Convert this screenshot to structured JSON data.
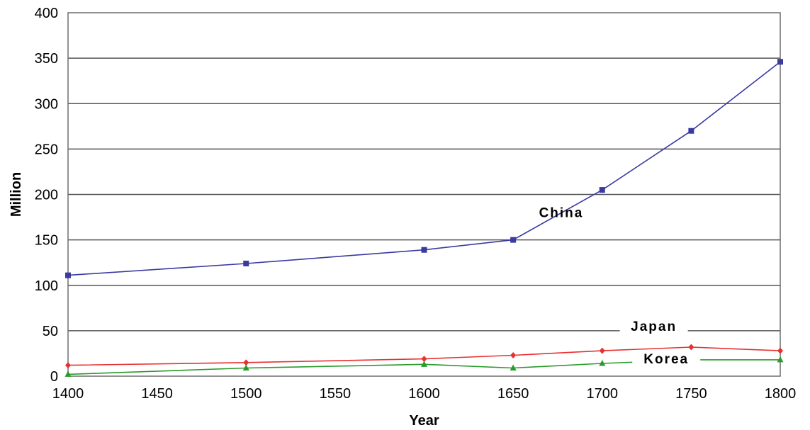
{
  "chart_data": {
    "type": "line",
    "xlabel": "Year",
    "ylabel": "Million",
    "xlim": [
      1400,
      1800
    ],
    "ylim": [
      0,
      400
    ],
    "xticks": [
      "1400",
      "1450",
      "1500",
      "1550",
      "1600",
      "1650",
      "1700",
      "1750",
      "1800"
    ],
    "yticks": [
      "0",
      "50",
      "100",
      "150",
      "200",
      "250",
      "300",
      "350",
      "400"
    ],
    "grid": "horizontal",
    "series": [
      {
        "name": "China",
        "color": "#3a3aa0",
        "marker": "square",
        "x": [
          1400,
          1500,
          1600,
          1650,
          1700,
          1750,
          1800
        ],
        "y": [
          111,
          124,
          139,
          150,
          205,
          270,
          346
        ]
      },
      {
        "name": "Japan",
        "color": "#e83030",
        "marker": "diamond",
        "x": [
          1400,
          1500,
          1600,
          1650,
          1700,
          1750,
          1800
        ],
        "y": [
          12,
          15,
          19,
          23,
          28,
          32,
          28
        ]
      },
      {
        "name": "Korea",
        "color": "#2a9a2a",
        "marker": "triangle",
        "x": [
          1400,
          1500,
          1600,
          1650,
          1700,
          1750,
          1800
        ],
        "y": [
          2,
          9,
          13,
          9,
          14,
          18,
          18
        ]
      }
    ]
  }
}
